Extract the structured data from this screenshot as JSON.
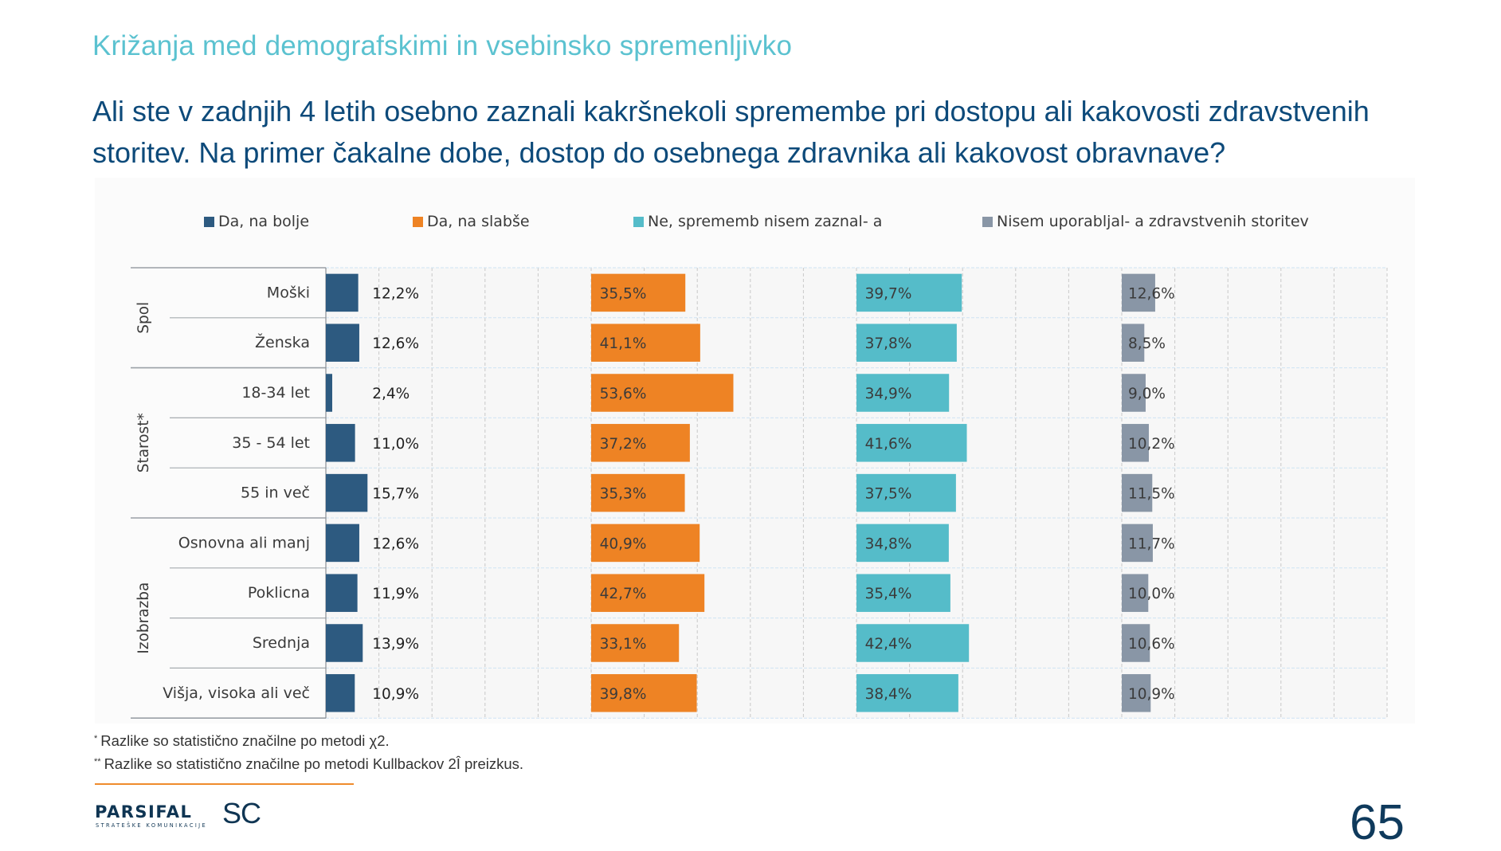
{
  "header": {
    "subtitle": "Križanja med demografskimi in vsebinsko spremenljivko",
    "question": "Ali ste v zadnjih 4 letih osebno zaznali kakršnekoli spremembe pri dostopu ali kakovosti zdravstvenih storitev. Na primer čakalne dobe, dostop do osebnega zdravnika ali kakovost obravnave?"
  },
  "chart_data": {
    "type": "bar",
    "orientation": "horizontal",
    "layout": "panel-per-series",
    "title": "",
    "xlabel": "",
    "ylabel": "",
    "unit": "%",
    "xlim_per_series": [
      0,
      100
    ],
    "grid": true,
    "legend_position": "top",
    "groups": [
      {
        "name": "Spol",
        "categories": [
          "Moški",
          "Ženska"
        ]
      },
      {
        "name": "Starost*",
        "categories": [
          "18-34 let",
          "35 - 54 let",
          "55 in več"
        ]
      },
      {
        "name": "Izobrazba",
        "categories": [
          "Osnovna ali manj",
          "Poklicna",
          "Srednja",
          "Višja, visoka ali več"
        ]
      }
    ],
    "categories": [
      "Moški",
      "Ženska",
      "18-34 let",
      "35 - 54 let",
      "55 in več",
      "Osnovna ali manj",
      "Poklicna",
      "Srednja",
      "Višja, visoka ali več"
    ],
    "series": [
      {
        "name": "Da, na bolje",
        "color": "#2d5a80",
        "values": [
          12.2,
          12.6,
          2.4,
          11.0,
          15.7,
          12.6,
          11.9,
          13.9,
          10.9
        ],
        "labels": [
          "12,2%",
          "12,6%",
          "2,4%",
          "11,0%",
          "15,7%",
          "12,6%",
          "11,9%",
          "13,9%",
          "10,9%"
        ]
      },
      {
        "name": "Da, na slabše",
        "color": "#ee8324",
        "values": [
          35.5,
          41.1,
          53.6,
          37.2,
          35.3,
          40.9,
          42.7,
          33.1,
          39.8
        ],
        "labels": [
          "35,5%",
          "41,1%",
          "53,6%",
          "37,2%",
          "35,3%",
          "40,9%",
          "42,7%",
          "33,1%",
          "39,8%"
        ]
      },
      {
        "name": "Ne, sprememb nisem zaznal- a",
        "color": "#55bcc9",
        "values": [
          39.7,
          37.8,
          34.9,
          41.6,
          37.5,
          34.8,
          35.4,
          42.4,
          38.4
        ],
        "labels": [
          "39,7%",
          "37,8%",
          "34,9%",
          "41,6%",
          "37,5%",
          "34,8%",
          "35,4%",
          "42,4%",
          "38,4%"
        ]
      },
      {
        "name": "Nisem uporabljal- a zdravstvenih storitev",
        "color": "#8996a6",
        "values": [
          12.6,
          8.5,
          9.0,
          10.2,
          11.5,
          11.7,
          10.0,
          10.6,
          10.9
        ],
        "labels": [
          "12,6%",
          "8,5%",
          "9,0%",
          "10,2%",
          "11,5%",
          "11,7%",
          "10,0%",
          "10,6%",
          "10,9%"
        ]
      }
    ]
  },
  "footnotes": [
    {
      "mark": "*",
      "text": "Razlike so statistično značilne po metodi χ2."
    },
    {
      "mark": "**",
      "text": "Razlike so statistično značilne po metodi Kullbackov 2Î preizkus."
    }
  ],
  "footer": {
    "logo_main": "PARSIFAL",
    "logo_sub": "STRATEŠKE KOMUNIKACIJE",
    "logo_sc": "SC",
    "page_number": "65"
  }
}
